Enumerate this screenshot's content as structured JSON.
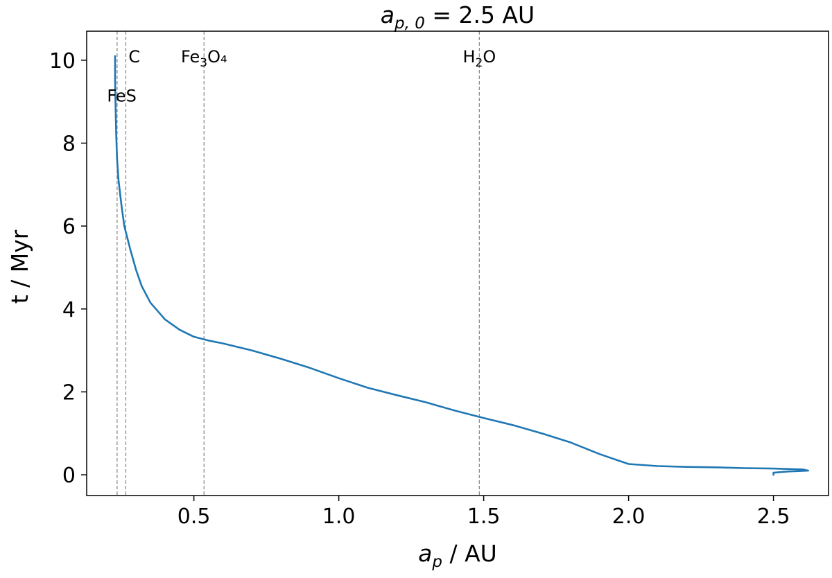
{
  "chart_data": {
    "type": "line",
    "title_main": "a",
    "title_sub": "p, 0",
    "title_rest": " = 2.5 AU",
    "xlabel_main": "a",
    "xlabel_sub": "p",
    "xlabel_rest": " / AU",
    "ylabel": "t / Myr",
    "xlim": [
      0.13,
      2.69
    ],
    "ylim": [
      -0.5,
      10.7
    ],
    "xticks": [
      0.5,
      1.0,
      1.5,
      2.0,
      2.5
    ],
    "xtick_labels": [
      "0.5",
      "1.0",
      "1.5",
      "2.0",
      "2.5"
    ],
    "yticks": [
      0,
      2,
      4,
      6,
      8,
      10
    ],
    "ytick_labels": [
      "0",
      "2",
      "4",
      "6",
      "8",
      "10"
    ],
    "grid": false,
    "series": [
      {
        "color": "#1f77b4",
        "x": [
          2.5,
          2.5,
          2.55,
          2.62,
          2.6,
          2.5,
          2.4,
          2.3,
          2.2,
          2.1,
          2.0,
          1.9,
          1.8,
          1.7,
          1.6,
          1.5,
          1.4,
          1.3,
          1.2,
          1.1,
          1.0,
          0.9,
          0.8,
          0.7,
          0.6,
          0.55,
          0.5,
          0.45,
          0.4,
          0.35,
          0.32,
          0.3,
          0.28,
          0.26,
          0.25,
          0.24,
          0.235,
          0.232,
          0.23,
          0.228,
          0.228
        ],
        "y": [
          0.0,
          0.05,
          0.08,
          0.1,
          0.13,
          0.15,
          0.16,
          0.18,
          0.19,
          0.21,
          0.26,
          0.5,
          0.78,
          1.0,
          1.2,
          1.37,
          1.55,
          1.75,
          1.92,
          2.1,
          2.33,
          2.58,
          2.8,
          3.0,
          3.17,
          3.24,
          3.33,
          3.5,
          3.75,
          4.15,
          4.55,
          4.95,
          5.45,
          6.0,
          6.5,
          7.1,
          7.6,
          8.2,
          8.8,
          9.5,
          10.1
        ]
      }
    ],
    "vlines": [
      {
        "x": 0.235,
        "label_main": "FeS",
        "label_sub": "",
        "label_tail": "",
        "label_y": 9.0,
        "anchor": "end"
      },
      {
        "x": 0.265,
        "label_main": "C",
        "label_sub": "",
        "label_tail": "",
        "label_y": 9.95,
        "anchor": "start"
      },
      {
        "x": 0.535,
        "label_main": "Fe",
        "label_sub": "3",
        "label_tail": "O₄",
        "label_y": 9.95,
        "anchor": "middle"
      },
      {
        "x": 1.485,
        "label_main": "H",
        "label_sub": "2",
        "label_tail": "O",
        "label_y": 9.95,
        "anchor": "middle"
      }
    ]
  }
}
